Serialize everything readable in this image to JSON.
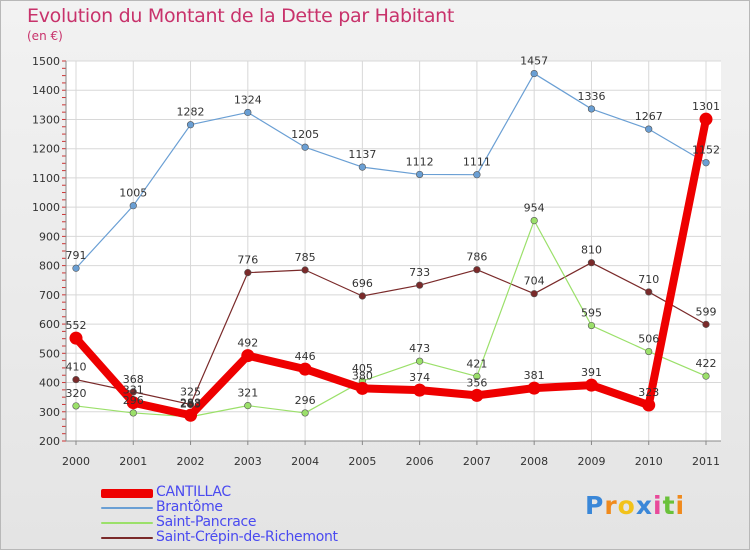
{
  "header": {
    "title": "Evolution du Montant de la Dette par Habitant",
    "subtitle": "(en €)"
  },
  "logo": {
    "letters": [
      "P",
      "r",
      "o",
      "x",
      "i",
      "t",
      "i"
    ],
    "colors": [
      "#3a87d8",
      "#f08a1c",
      "#f2c21a",
      "#3a87d8",
      "#e84a9a",
      "#6ac13a",
      "#f08a1c"
    ]
  },
  "chart_data": {
    "type": "line",
    "title": "Evolution du Montant de la Dette par Habitant",
    "subtitle": "(en €)",
    "x": [
      "2000",
      "2001",
      "2002",
      "2003",
      "2004",
      "2005",
      "2006",
      "2007",
      "2008",
      "2009",
      "2010",
      "2011"
    ],
    "ylim": [
      200,
      1500
    ],
    "yticks": [
      "200",
      "300",
      "400",
      "500",
      "600",
      "700",
      "800",
      "900",
      "1000",
      "1100",
      "1200",
      "1300",
      "1400",
      "1500"
    ],
    "grid": true,
    "legend_position": "bottom-left",
    "series": [
      {
        "name": "CANTILLAC",
        "color": "#ee0000",
        "values": [
          552,
          331,
          288,
          492,
          446,
          380,
          374,
          356,
          381,
          391,
          323,
          1301
        ],
        "labels": [
          "552",
          "331",
          "288",
          "492",
          "446",
          "380",
          "374",
          "356",
          "381",
          "391",
          "323",
          "1301"
        ]
      },
      {
        "name": "Brantôme",
        "color": "#6a9fd4",
        "values": [
          791,
          1005,
          1282,
          1324,
          1205,
          1137,
          1112,
          1111,
          1457,
          1336,
          1267,
          1152
        ],
        "labels": [
          "791",
          "1005",
          "1282",
          "1324",
          "1205",
          "1137",
          "1112",
          "1111",
          "1457",
          "1336",
          "1267",
          "1152"
        ]
      },
      {
        "name": "Saint-Pancrace",
        "color": "#9be06a",
        "values": [
          320,
          296,
          283,
          321,
          296,
          405,
          473,
          421,
          954,
          595,
          506,
          422
        ],
        "labels": [
          "320",
          "296",
          "283",
          "321",
          "296",
          "405",
          "473",
          "421",
          "954",
          "595",
          "506",
          "422"
        ]
      },
      {
        "name": "Saint-Crépin-de-Richemont",
        "color": "#7a2a2a",
        "values": [
          410,
          368,
          325,
          776,
          785,
          696,
          733,
          786,
          704,
          810,
          710,
          599
        ],
        "labels": [
          "410",
          "368",
          "325",
          "776",
          "785",
          "696",
          "733",
          "786",
          "704",
          "810",
          "710",
          "599"
        ]
      }
    ]
  }
}
